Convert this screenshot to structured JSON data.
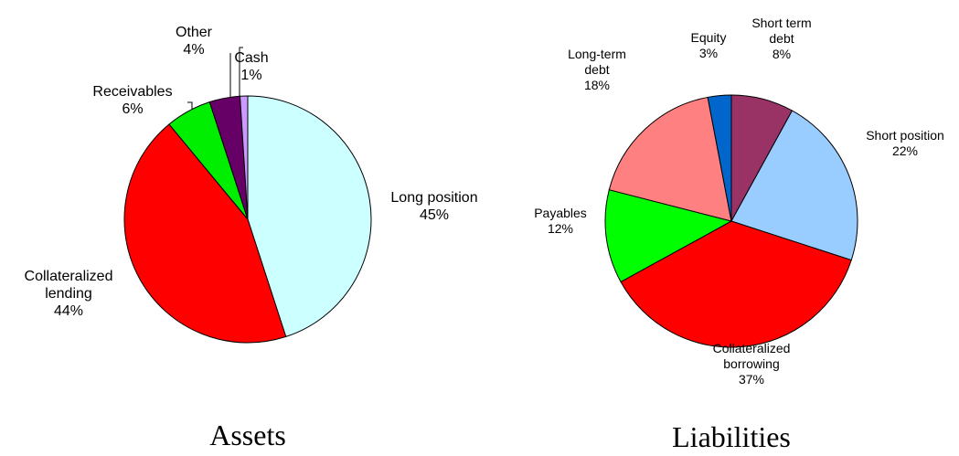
{
  "chart_data": [
    {
      "type": "pie",
      "title": "Assets",
      "categories": [
        "Long position",
        "Collateralized lending",
        "Receivables",
        "Other",
        "Cash"
      ],
      "values": [
        45,
        44,
        6,
        4,
        1
      ],
      "value_labels": [
        "45%",
        "44%",
        "6%",
        "4%",
        "1%"
      ],
      "colors": [
        "#ccffff",
        "#ff0000",
        "#00ee00",
        "#660066",
        "#cc99ff"
      ]
    },
    {
      "type": "pie",
      "title": "Liabilities",
      "categories": [
        "Short term debt",
        "Short position",
        "Collateralized borrowing",
        "Payables",
        "Long-term debt",
        "Equity"
      ],
      "values": [
        8,
        22,
        37,
        12,
        18,
        3
      ],
      "value_labels": [
        "8%",
        "22%",
        "37%",
        "12%",
        "18%",
        "3%"
      ],
      "colors": [
        "#993366",
        "#99ccff",
        "#ff0000",
        "#00ff00",
        "#ff8080",
        "#0066cc"
      ]
    }
  ]
}
